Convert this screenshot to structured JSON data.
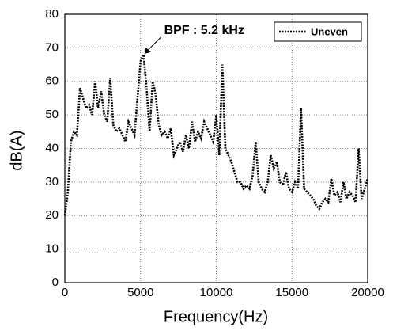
{
  "chart_data": {
    "type": "line",
    "xlabel": "Frequency(Hz)",
    "ylabel": "dB(A)",
    "x": [
      0,
      200,
      400,
      600,
      800,
      1000,
      1200,
      1400,
      1600,
      1800,
      2000,
      2200,
      2400,
      2600,
      2800,
      3000,
      3200,
      3400,
      3600,
      3800,
      4000,
      4200,
      4400,
      4600,
      4800,
      5000,
      5200,
      5400,
      5600,
      5800,
      6000,
      6200,
      6400,
      6600,
      6800,
      7000,
      7200,
      7400,
      7600,
      7800,
      8000,
      8200,
      8400,
      8600,
      8800,
      9000,
      9200,
      9400,
      9600,
      9800,
      10000,
      10200,
      10400,
      10600,
      10800,
      11000,
      11200,
      11400,
      11600,
      11800,
      12000,
      12200,
      12400,
      12600,
      12800,
      13000,
      13200,
      13400,
      13600,
      13800,
      14000,
      14200,
      14400,
      14600,
      14800,
      15000,
      15200,
      15400,
      15600,
      15800,
      16000,
      16200,
      16400,
      16600,
      16800,
      17000,
      17200,
      17400,
      17600,
      17800,
      18000,
      18200,
      18400,
      18600,
      18800,
      19000,
      19200,
      19400,
      19600,
      19800,
      20000
    ],
    "series": [
      {
        "name": "Uneven",
        "color": "#000000",
        "linestyle": "dotted",
        "values": [
          20,
          27,
          42,
          45,
          44,
          58,
          55,
          52,
          53,
          50,
          60,
          52,
          57,
          50,
          48,
          61,
          47,
          45,
          46,
          44,
          42,
          48,
          46,
          44,
          55,
          66,
          68,
          58,
          45,
          60,
          56,
          47,
          44,
          45,
          43,
          46,
          38,
          40,
          42,
          39,
          44,
          40,
          48,
          42,
          45,
          43,
          48,
          46,
          44,
          42,
          50,
          38,
          65,
          40,
          38,
          36,
          33,
          30,
          30,
          28,
          29,
          28,
          32,
          42,
          30,
          28,
          27,
          30,
          38,
          34,
          36,
          30,
          29,
          33,
          28,
          27,
          30,
          28,
          52,
          28,
          27,
          26,
          25,
          23,
          22,
          24,
          25,
          24,
          31,
          26,
          27,
          24,
          30,
          25,
          27,
          26,
          24,
          40,
          25,
          28,
          31
        ]
      }
    ],
    "annotations": [
      {
        "text": "BPF : 5.2 kHz",
        "x": 5200,
        "y": 68
      }
    ],
    "xlim": [
      0,
      20000
    ],
    "xticks": [
      0,
      5000,
      10000,
      15000,
      20000
    ],
    "ylim": [
      0,
      80
    ],
    "yticks": [
      0,
      10,
      20,
      30,
      40,
      50,
      60,
      70,
      80
    ],
    "grid": true,
    "legend": "upper right"
  }
}
